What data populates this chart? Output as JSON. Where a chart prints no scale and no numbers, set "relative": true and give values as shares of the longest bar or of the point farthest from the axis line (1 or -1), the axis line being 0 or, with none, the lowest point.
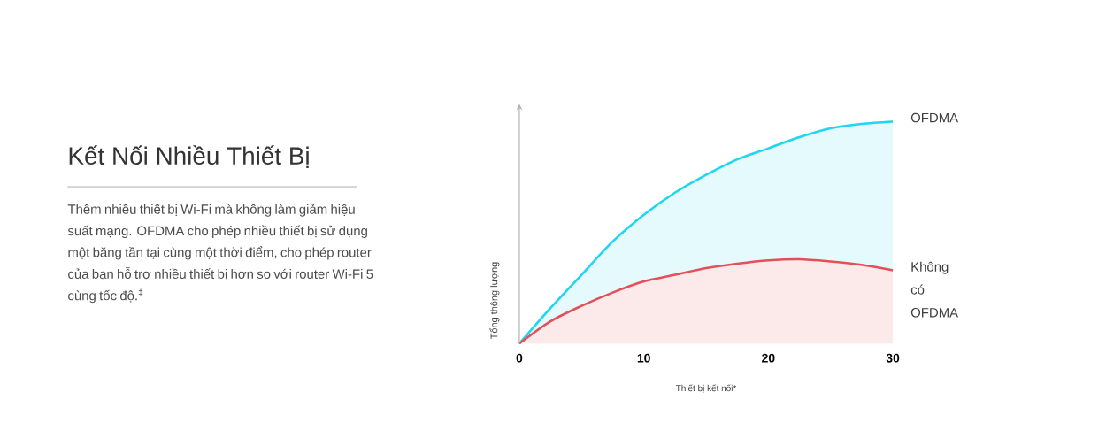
{
  "chart_data": {
    "type": "area",
    "title": "Kết Nối Nhiều Thiết Bị",
    "annotations": [
      "Thêm nhiều thiết bị Wi-Fi mà không làm giảm hiệu suất mạng. OFDMA cho phép nhiều thiết bị sử dụng một băng tần tại cùng một thời điểm, cho phép router của bạn hỗ trợ nhiều thiết bị hơn so với router Wi-Fi 5 cùng tốc độ.$^{‡}$"
    ],
    "xlabel": "Thiết bị kết nối*",
    "ylabel": "Tổng thông lượng",
    "relative": true,
    "x": [
      0,
      2.5,
      5,
      7.5,
      10,
      12.5,
      15,
      17.5,
      20,
      22.5,
      25,
      27.5,
      30
    ],
    "xlim": [
      0,
      30
    ],
    "xticks": [
      0,
      10,
      20,
      30
    ],
    "series": [
      {
        "name": "OFDMA",
        "color": "#1ed6f2",
        "values": [
          0,
          0.16,
          0.31,
          0.46,
          0.58,
          0.68,
          0.76,
          0.83,
          0.88,
          0.93,
          0.97,
          0.99,
          1
        ]
      },
      {
        "name": "Không có OFDMA",
        "color": "#e2505a",
        "values": [
          0,
          0.1,
          0.17,
          0.23,
          0.28,
          0.31,
          0.34,
          0.36,
          0.375,
          0.38,
          0.37,
          0.355,
          0.33
        ]
      }
    ]
  }
}
